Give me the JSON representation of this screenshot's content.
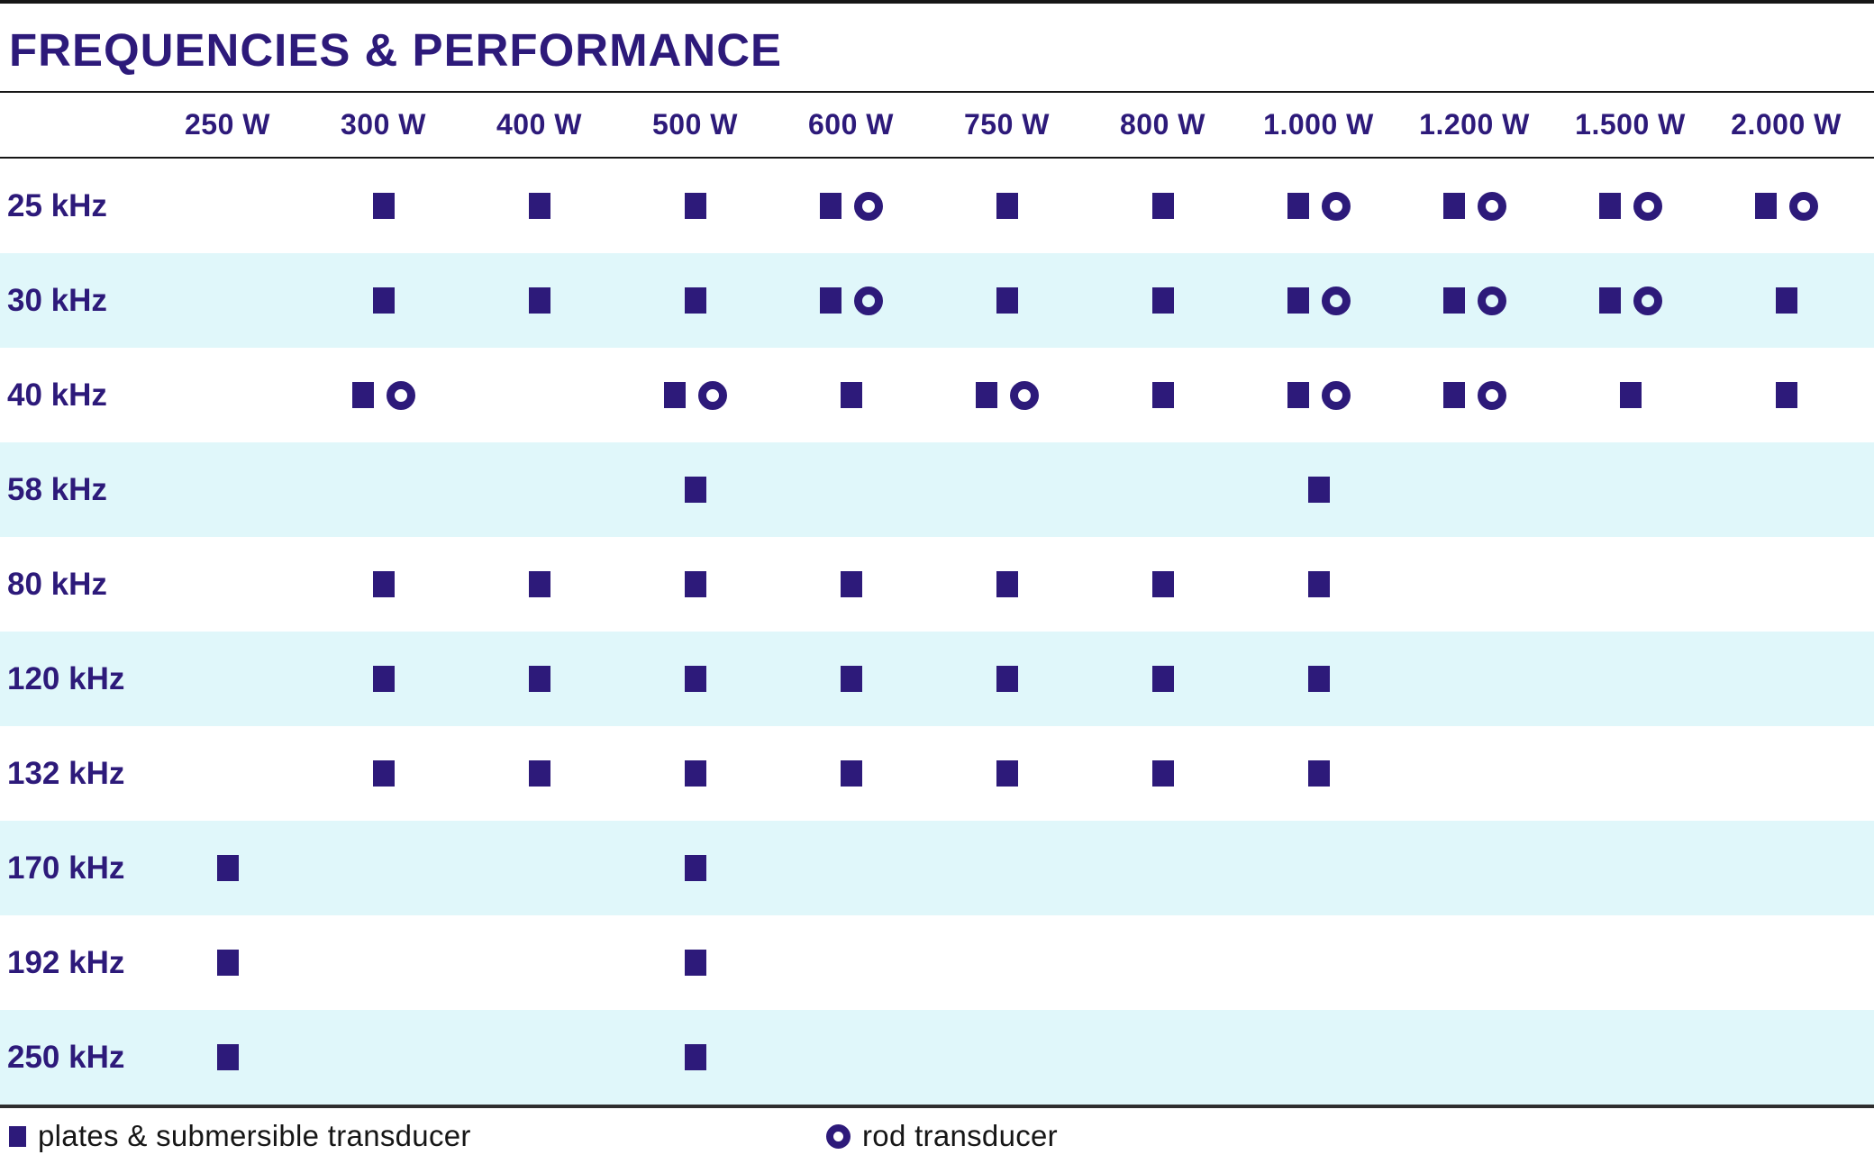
{
  "title": "FREQUENCIES & PERFORMANCE",
  "colors": {
    "marker_purple": "#2d1a7a",
    "row_band_blue": "#e0f7fa",
    "legend_text": "#161616"
  },
  "chart_data": {
    "type": "table",
    "title": "FREQUENCIES & PERFORMANCE",
    "columns": [
      "250 W",
      "300 W",
      "400 W",
      "500 W",
      "600 W",
      "750 W",
      "800 W",
      "1.000 W",
      "1.200 W",
      "1.500 W",
      "2.000 W"
    ],
    "marker_meaning": {
      "square": "plates & submersible transducer",
      "circle": "rod transducer"
    },
    "rows": [
      {
        "label": "25 kHz",
        "cells": [
          [],
          [
            "square"
          ],
          [
            "square"
          ],
          [
            "square"
          ],
          [
            "square",
            "circle"
          ],
          [
            "square"
          ],
          [
            "square"
          ],
          [
            "square",
            "circle"
          ],
          [
            "square",
            "circle"
          ],
          [
            "square",
            "circle"
          ],
          [
            "square",
            "circle"
          ]
        ]
      },
      {
        "label": "30 kHz",
        "cells": [
          [],
          [
            "square"
          ],
          [
            "square"
          ],
          [
            "square"
          ],
          [
            "square",
            "circle"
          ],
          [
            "square"
          ],
          [
            "square"
          ],
          [
            "square",
            "circle"
          ],
          [
            "square",
            "circle"
          ],
          [
            "square",
            "circle"
          ],
          [
            "square"
          ]
        ]
      },
      {
        "label": "40 kHz",
        "cells": [
          [],
          [
            "square",
            "circle"
          ],
          [],
          [
            "square",
            "circle"
          ],
          [
            "square"
          ],
          [
            "square",
            "circle"
          ],
          [
            "square"
          ],
          [
            "square",
            "circle"
          ],
          [
            "square",
            "circle"
          ],
          [
            "square"
          ],
          [
            "square"
          ]
        ]
      },
      {
        "label": "58 kHz",
        "cells": [
          [],
          [],
          [],
          [
            "square"
          ],
          [],
          [],
          [],
          [
            "square"
          ],
          [],
          [],
          []
        ]
      },
      {
        "label": "80 kHz",
        "cells": [
          [],
          [
            "square"
          ],
          [
            "square"
          ],
          [
            "square"
          ],
          [
            "square"
          ],
          [
            "square"
          ],
          [
            "square"
          ],
          [
            "square"
          ],
          [],
          [],
          []
        ]
      },
      {
        "label": "120 kHz",
        "cells": [
          [],
          [
            "square"
          ],
          [
            "square"
          ],
          [
            "square"
          ],
          [
            "square"
          ],
          [
            "square"
          ],
          [
            "square"
          ],
          [
            "square"
          ],
          [],
          [],
          []
        ]
      },
      {
        "label": "132 kHz",
        "cells": [
          [],
          [
            "square"
          ],
          [
            "square"
          ],
          [
            "square"
          ],
          [
            "square"
          ],
          [
            "square"
          ],
          [
            "square"
          ],
          [
            "square"
          ],
          [],
          [],
          []
        ]
      },
      {
        "label": "170 kHz",
        "cells": [
          [
            "square"
          ],
          [],
          [],
          [
            "square"
          ],
          [],
          [],
          [],
          [],
          [],
          [],
          []
        ]
      },
      {
        "label": "192 kHz",
        "cells": [
          [
            "square"
          ],
          [],
          [],
          [
            "square"
          ],
          [],
          [],
          [],
          [],
          [],
          [],
          []
        ]
      },
      {
        "label": "250 kHz",
        "cells": [
          [
            "square"
          ],
          [],
          [],
          [
            "square"
          ],
          [],
          [],
          [],
          [],
          [],
          [],
          []
        ]
      }
    ],
    "legend": [
      {
        "marker": "square",
        "label": "plates & submersible transducer"
      },
      {
        "marker": "circle",
        "label": "rod transducer"
      }
    ]
  }
}
